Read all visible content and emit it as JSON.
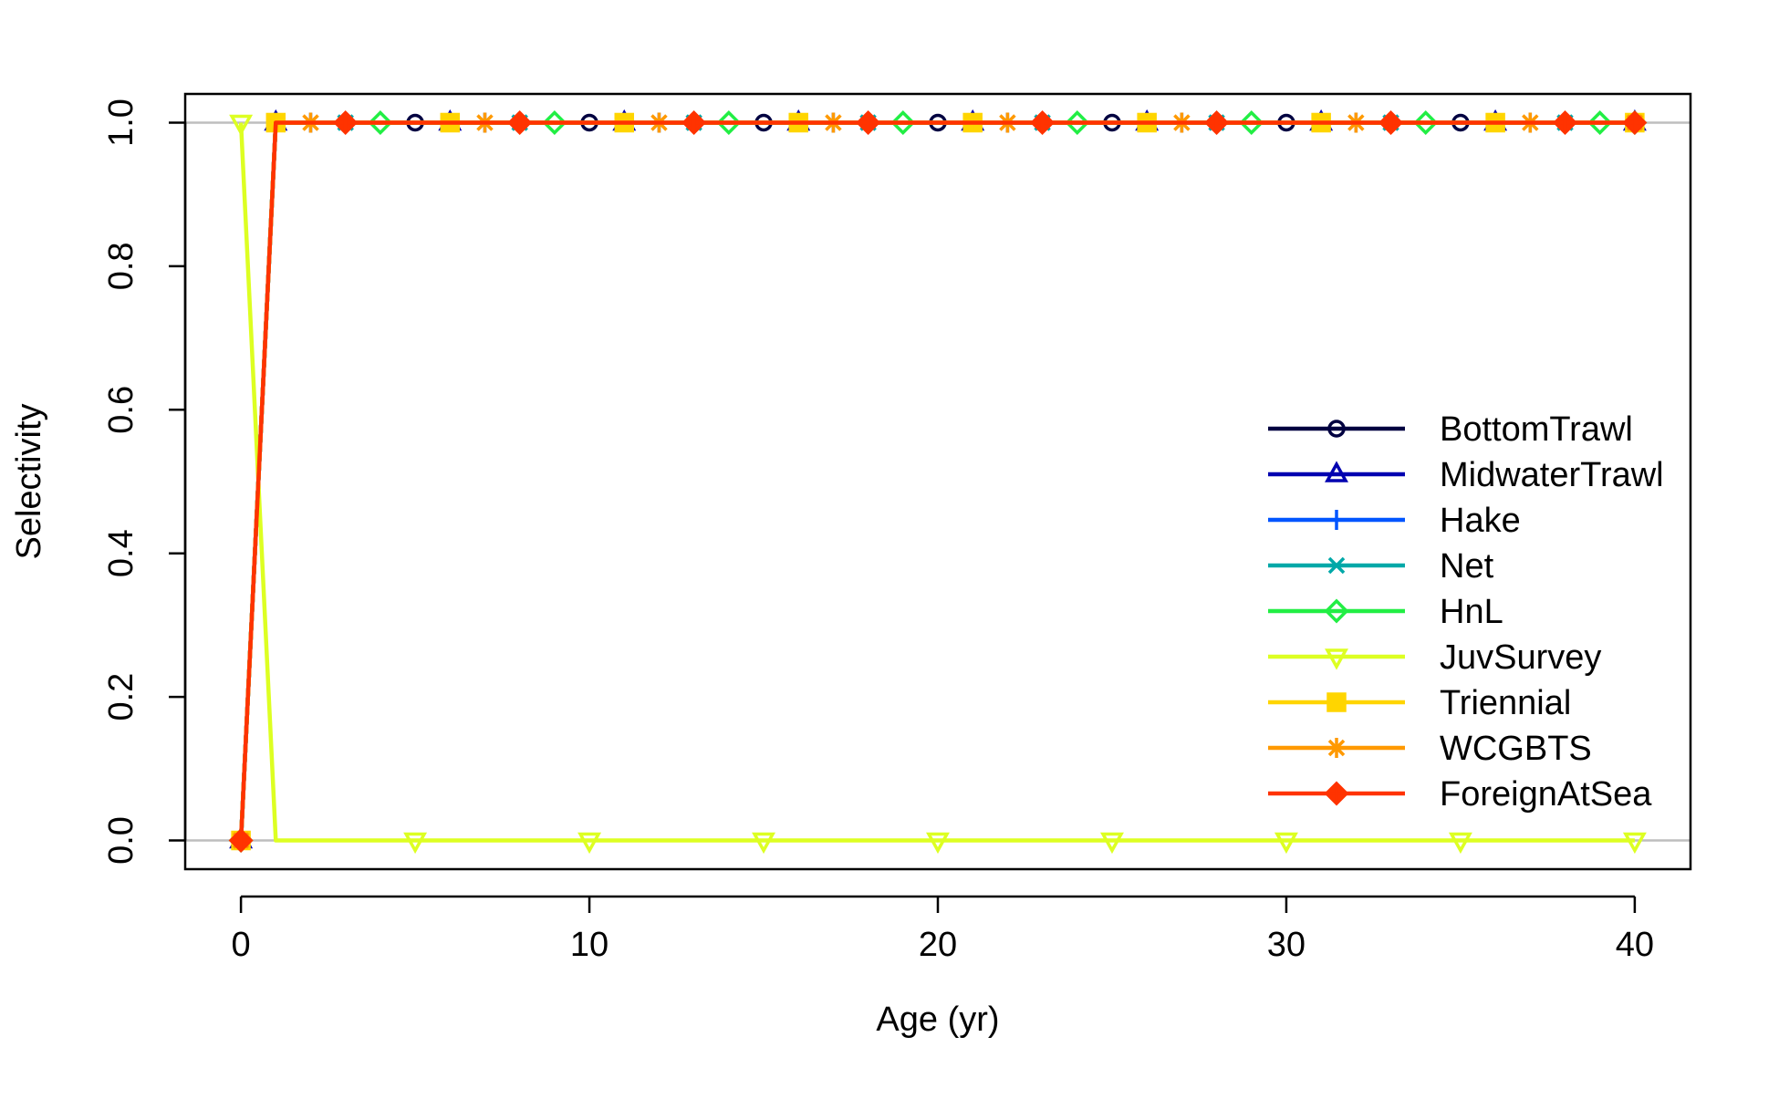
{
  "chart_data": {
    "type": "line",
    "title": "",
    "xlabel": "Age (yr)",
    "ylabel": "Selectivity",
    "xlim": [
      -1.6,
      41.6
    ],
    "ylim": [
      -0.04,
      1.04
    ],
    "xticks": [
      0,
      10,
      20,
      30,
      40
    ],
    "xtick_labels": [
      "0",
      "10",
      "20",
      "30",
      "40"
    ],
    "yticks": [
      0.0,
      0.2,
      0.4,
      0.6,
      0.8,
      1.0
    ],
    "ytick_labels": [
      "0.0",
      "0.2",
      "0.4",
      "0.6",
      "0.8",
      "1.0"
    ],
    "reference_lines_y": [
      0,
      1
    ],
    "legend_position": "right",
    "x": [
      0,
      1,
      2,
      3,
      4,
      5,
      6,
      7,
      8,
      9,
      10,
      11,
      12,
      13,
      14,
      15,
      16,
      17,
      18,
      19,
      20,
      21,
      22,
      23,
      24,
      25,
      26,
      27,
      28,
      29,
      30,
      31,
      32,
      33,
      34,
      35,
      36,
      37,
      38,
      39,
      40
    ],
    "marker_every": 5,
    "series": [
      {
        "name": "BottomTrawl",
        "color": "#000040",
        "marker": "circle",
        "marker_offset": 0,
        "values": [
          0,
          1,
          1,
          1,
          1,
          1,
          1,
          1,
          1,
          1,
          1,
          1,
          1,
          1,
          1,
          1,
          1,
          1,
          1,
          1,
          1,
          1,
          1,
          1,
          1,
          1,
          1,
          1,
          1,
          1,
          1,
          1,
          1,
          1,
          1,
          1,
          1,
          1,
          1,
          1,
          1
        ]
      },
      {
        "name": "MidwaterTrawl",
        "color": "#0000B0",
        "marker": "triangle",
        "marker_offset": 1,
        "values": [
          0,
          1,
          1,
          1,
          1,
          1,
          1,
          1,
          1,
          1,
          1,
          1,
          1,
          1,
          1,
          1,
          1,
          1,
          1,
          1,
          1,
          1,
          1,
          1,
          1,
          1,
          1,
          1,
          1,
          1,
          1,
          1,
          1,
          1,
          1,
          1,
          1,
          1,
          1,
          1,
          1
        ]
      },
      {
        "name": "Hake",
        "color": "#0055FF",
        "marker": "plus",
        "marker_offset": 2,
        "values": [
          0,
          1,
          1,
          1,
          1,
          1,
          1,
          1,
          1,
          1,
          1,
          1,
          1,
          1,
          1,
          1,
          1,
          1,
          1,
          1,
          1,
          1,
          1,
          1,
          1,
          1,
          1,
          1,
          1,
          1,
          1,
          1,
          1,
          1,
          1,
          1,
          1,
          1,
          1,
          1,
          1
        ]
      },
      {
        "name": "Net",
        "color": "#00A8A8",
        "marker": "cross",
        "marker_offset": 3,
        "values": [
          0,
          1,
          1,
          1,
          1,
          1,
          1,
          1,
          1,
          1,
          1,
          1,
          1,
          1,
          1,
          1,
          1,
          1,
          1,
          1,
          1,
          1,
          1,
          1,
          1,
          1,
          1,
          1,
          1,
          1,
          1,
          1,
          1,
          1,
          1,
          1,
          1,
          1,
          1,
          1,
          1
        ]
      },
      {
        "name": "HnL",
        "color": "#22EE44",
        "marker": "diamond",
        "marker_offset": 4,
        "values": [
          0,
          1,
          1,
          1,
          1,
          1,
          1,
          1,
          1,
          1,
          1,
          1,
          1,
          1,
          1,
          1,
          1,
          1,
          1,
          1,
          1,
          1,
          1,
          1,
          1,
          1,
          1,
          1,
          1,
          1,
          1,
          1,
          1,
          1,
          1,
          1,
          1,
          1,
          1,
          1,
          1
        ]
      },
      {
        "name": "JuvSurvey",
        "color": "#DDFF22",
        "marker": "triangle-down",
        "marker_offset": 0,
        "values": [
          1,
          0,
          0,
          0,
          0,
          0,
          0,
          0,
          0,
          0,
          0,
          0,
          0,
          0,
          0,
          0,
          0,
          0,
          0,
          0,
          0,
          0,
          0,
          0,
          0,
          0,
          0,
          0,
          0,
          0,
          0,
          0,
          0,
          0,
          0,
          0,
          0,
          0,
          0,
          0,
          0
        ]
      },
      {
        "name": "Triennial",
        "color": "#FFD500",
        "marker": "square-plus",
        "marker_offset": 1,
        "values": [
          0,
          1,
          1,
          1,
          1,
          1,
          1,
          1,
          1,
          1,
          1,
          1,
          1,
          1,
          1,
          1,
          1,
          1,
          1,
          1,
          1,
          1,
          1,
          1,
          1,
          1,
          1,
          1,
          1,
          1,
          1,
          1,
          1,
          1,
          1,
          1,
          1,
          1,
          1,
          1,
          1
        ]
      },
      {
        "name": "WCGBTS",
        "color": "#FF9900",
        "marker": "asterisk",
        "marker_offset": 2,
        "values": [
          0,
          1,
          1,
          1,
          1,
          1,
          1,
          1,
          1,
          1,
          1,
          1,
          1,
          1,
          1,
          1,
          1,
          1,
          1,
          1,
          1,
          1,
          1,
          1,
          1,
          1,
          1,
          1,
          1,
          1,
          1,
          1,
          1,
          1,
          1,
          1,
          1,
          1,
          1,
          1,
          1
        ]
      },
      {
        "name": "ForeignAtSea",
        "color": "#FF3300",
        "marker": "diamond-plus",
        "marker_offset": 3,
        "values": [
          0,
          1,
          1,
          1,
          1,
          1,
          1,
          1,
          1,
          1,
          1,
          1,
          1,
          1,
          1,
          1,
          1,
          1,
          1,
          1,
          1,
          1,
          1,
          1,
          1,
          1,
          1,
          1,
          1,
          1,
          1,
          1,
          1,
          1,
          1,
          1,
          1,
          1,
          1,
          1,
          1
        ]
      }
    ]
  }
}
